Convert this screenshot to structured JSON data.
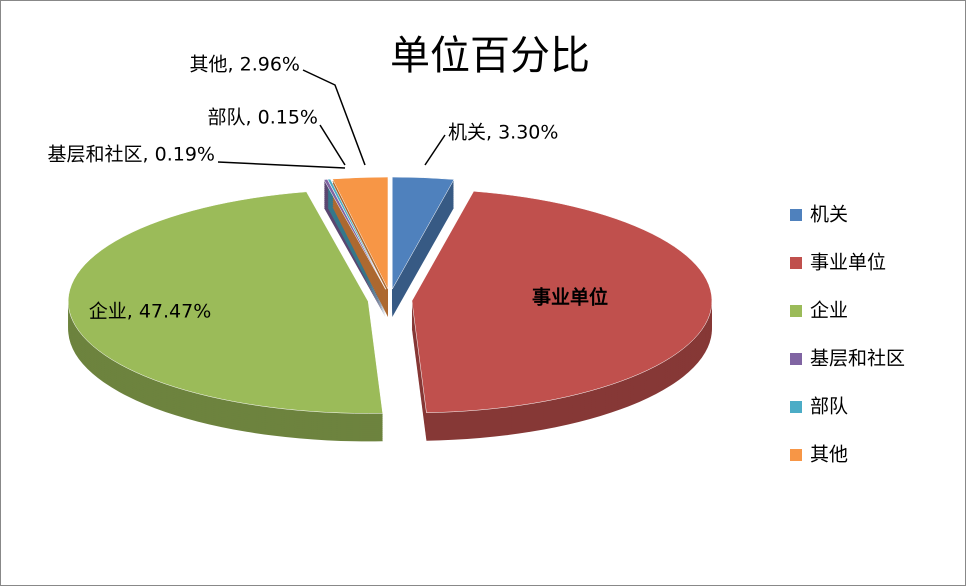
{
  "chart_data": {
    "type": "pie3d",
    "title": "单位百分比",
    "categories": [
      "机关",
      "事业单位",
      "企业",
      "基层和社区",
      "部队",
      "其他"
    ],
    "values": [
      3.3,
      45.93,
      47.47,
      0.19,
      0.15,
      2.96
    ],
    "value_labels": [
      "机关, 3.30%",
      null,
      "企业, 47.47%",
      "基层和社区, 0.19%",
      "部队, 0.15%",
      "其他, 2.96%"
    ],
    "colors": [
      "#4f81bd",
      "#c0504d",
      "#9bbb59",
      "#8064a2",
      "#4bacc6",
      "#f79646"
    ],
    "legend": "right"
  }
}
